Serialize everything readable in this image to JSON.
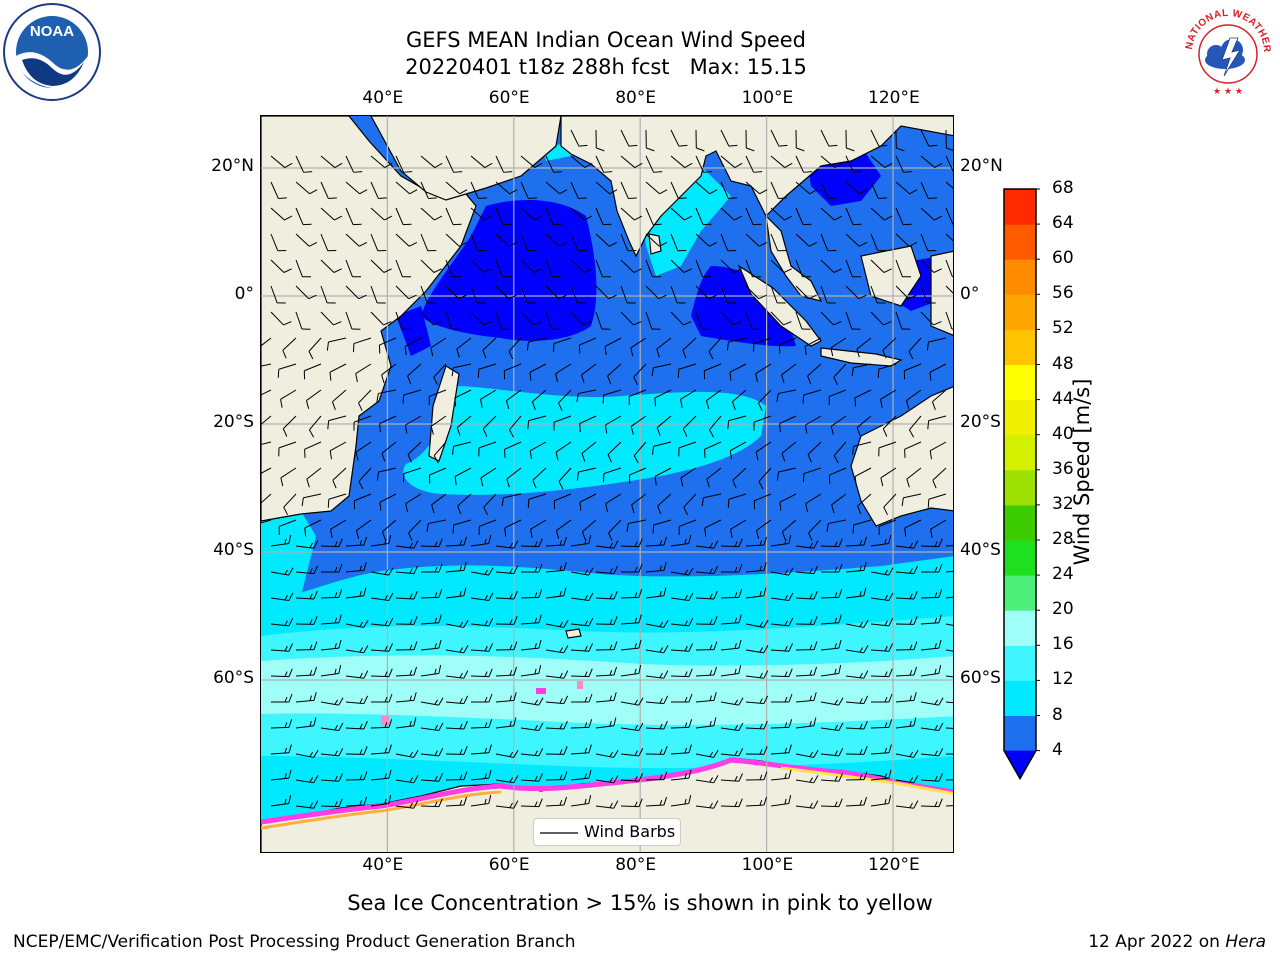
{
  "title": {
    "line1": "GEFS MEAN Indian Ocean Wind Speed",
    "line2": "20220401 t18z 288h fcst   Max: 15.15"
  },
  "logos": {
    "left": {
      "icon": "noaa-logo",
      "text": "NOAA"
    },
    "right": {
      "icon": "nws-logo",
      "text": "NATIONAL WEATHER SERVICE"
    }
  },
  "map": {
    "projection": "cylindrical",
    "lon_range": [
      20,
      130
    ],
    "lat_range": [
      -88,
      28
    ],
    "top_lon_labels": [
      "40°E",
      "60°E",
      "80°E",
      "100°E",
      "120°E"
    ],
    "bottom_lon_labels": [
      "40°E",
      "60°E",
      "80°E",
      "100°E",
      "120°E"
    ],
    "left_lat_labels": [
      "20°N",
      "0°",
      "20°S",
      "40°S",
      "60°S"
    ],
    "right_lat_labels": [
      "20°N",
      "0°",
      "20°S",
      "40°S",
      "60°S"
    ],
    "grid": true,
    "land_color": "#efeedf",
    "ice_colors": [
      "#ff3ce6",
      "#ff8ac7",
      "#ffb03a",
      "#ffe44a"
    ]
  },
  "legend": {
    "entry": "Wind Barbs",
    "placement": "bottom-center"
  },
  "colorbar": {
    "label": "Wind Speed [m/s]",
    "ticks": [
      "4",
      "8",
      "12",
      "16",
      "20",
      "24",
      "28",
      "32",
      "36",
      "40",
      "44",
      "48",
      "52",
      "56",
      "60",
      "64",
      "68"
    ],
    "colors": [
      "#1e70ee",
      "#00e9ff",
      "#3ff5ff",
      "#9ffff8",
      "#4def7a",
      "#1fe01f",
      "#3ccc00",
      "#9be000",
      "#d2f000",
      "#f0f000",
      "#ffff00",
      "#ffc400",
      "#ffa500",
      "#ff8c00",
      "#ff5a00",
      "#ff2a00",
      "#ff0000"
    ],
    "under_color": "#0000ff",
    "extend": "min"
  },
  "caption": "Sea Ice Concentration > 15% is shown in pink to yellow",
  "footer": {
    "left": "NCEP/EMC/Verification Post Processing Product Generation Branch",
    "right_prefix": "12 Apr 2022 on",
    "right_host": "Hera"
  }
}
